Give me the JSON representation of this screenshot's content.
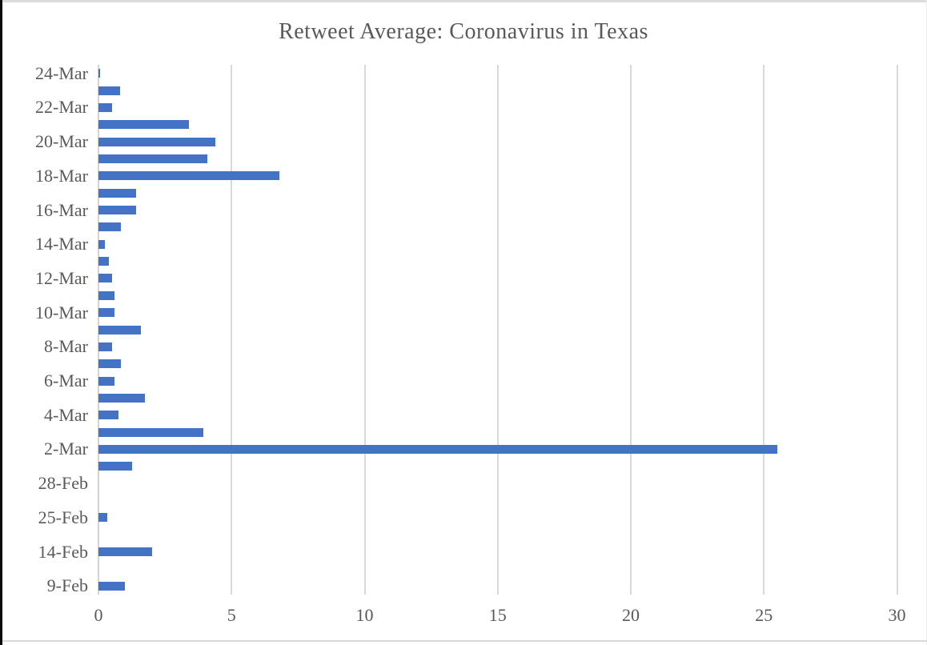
{
  "page": {
    "title": "Retweet Average: Coronavirus in Texas"
  },
  "colors": {
    "bar": "#4472C4",
    "gridline": "#D9D9D9",
    "zero_axis": "#D3D3D3",
    "text": "#595959"
  },
  "chart_data": {
    "type": "bar",
    "orientation": "horizontal",
    "title": "Retweet Average: Coronavirus in Texas",
    "categories": [
      "24-Mar",
      "",
      "22-Mar",
      "",
      "20-Mar",
      "",
      "18-Mar",
      "",
      "16-Mar",
      "",
      "14-Mar",
      "",
      "12-Mar",
      "",
      "10-Mar",
      "",
      "8-Mar",
      "",
      "6-Mar",
      "",
      "4-Mar",
      "",
      "2-Mar",
      "",
      "28-Feb",
      "",
      "25-Feb",
      "",
      "14-Feb",
      "",
      "9-Feb"
    ],
    "values": [
      0.07,
      0.8,
      0.5,
      3.4,
      4.4,
      4.1,
      6.8,
      1.4,
      1.4,
      0.85,
      0.25,
      0.4,
      0.5,
      0.6,
      0.6,
      1.6,
      0.5,
      0.85,
      0.6,
      1.75,
      0.75,
      3.95,
      25.5,
      1.25,
      0,
      0,
      0.33,
      0,
      2.0,
      0,
      1.0
    ],
    "visible_y_tick_labels": [
      "24-Mar",
      "22-Mar",
      "20-Mar",
      "18-Mar",
      "16-Mar",
      "14-Mar",
      "12-Mar",
      "10-Mar",
      "8-Mar",
      "6-Mar",
      "4-Mar",
      "2-Mar",
      "28-Feb",
      "25-Feb",
      "14-Feb",
      "9-Feb"
    ],
    "x_ticks": [
      0,
      5,
      10,
      15,
      20,
      25,
      30
    ],
    "xlim": [
      0,
      30
    ],
    "xlabel": "",
    "ylabel": "",
    "grid": true,
    "legend": false
  }
}
